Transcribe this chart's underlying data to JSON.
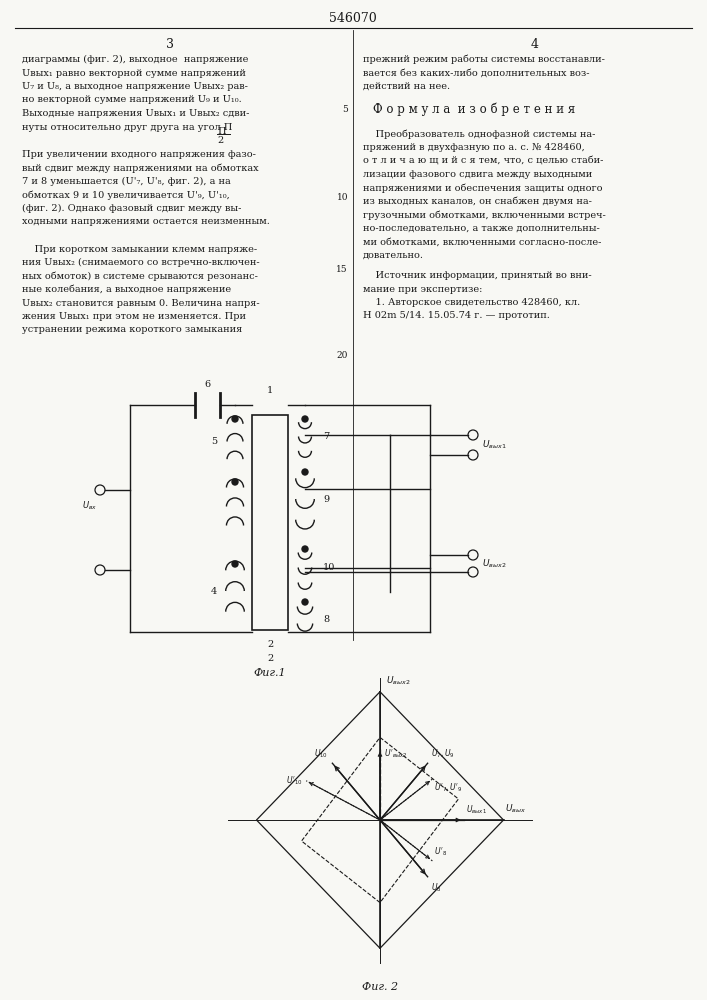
{
  "title": "546070",
  "bg_color": "#f8f8f4",
  "text_color": "#1a1a1a",
  "fig1_caption": "Фиг.1",
  "fig2_caption": "Фиг. 2",
  "left_col_lines": [
    "диаграммы (фиг. 2), выходное  напряжение",
    "Uвых₁ равно векторной сумме напряжений",
    "U₇ и U₈, а выходное напряжение Uвых₂ рав-",
    "но векторной сумме напряжений U₉ и U₁₀.",
    "Выходные напряжения Uвых₁ и Uвых₂ сдви-",
    "нуты относительно друг друга на угол Π",
    "——.",
    "2",
    "При увеличении входного напряжения фазо-",
    "вый сдвиг между напряжениями на обмотках",
    "7 и 8 уменьшается (U'₇, U'₈, фиг. 2), а на",
    "обмотках 9 и 10 увеличивается U'₉, U'₁₀,",
    "(фиг. 2). Однако фазовый сдвиг между вы-",
    "ходными напряжениями остается неизменным.",
    "",
    "    При коротком замыкании клемм напряже-",
    "ния Uвых₂ (снимаемого со встречно-включен-",
    "ных обмоток) в системе срываются резонанс-",
    "ные колебания, а выходное напряжение",
    "Uвых₂ становится равным 0. Величина напря-",
    "жения Uвых₁ при этом не изменяется. При",
    "устранении режима короткого замыкания"
  ],
  "right_col_lines": [
    "прежний режим работы системы восстанавли-",
    "вается без каких-либо дополнительных воз-",
    "действий на нее.",
    "",
    "Ф о р м у л а  и з о б р е т е н и я",
    "",
    "    Преобразователь однофазной системы на-",
    "пряжений в двухфазную по а. с. № 428460,",
    "о т л и ч а ю щ и й с я тем, что, с целью стаби-",
    "лизации фазового сдвига между выходными",
    "напряжениями и обеспечения защиты одного",
    "из выходных каналов, он снабжен двумя на-",
    "грузочными обмотками, включенными встреч-",
    "но-последовательно, а также дополнительны-",
    "ми обмотками, включенными согласно-после-",
    "довательно.",
    "",
    "    Источник информации, принятый во вни-",
    "мание при экспертизе:",
    "    1. Авторское свидетельство 428460, кл.",
    "Н 02m 5/14. 15.05.74 г. — прототип."
  ]
}
